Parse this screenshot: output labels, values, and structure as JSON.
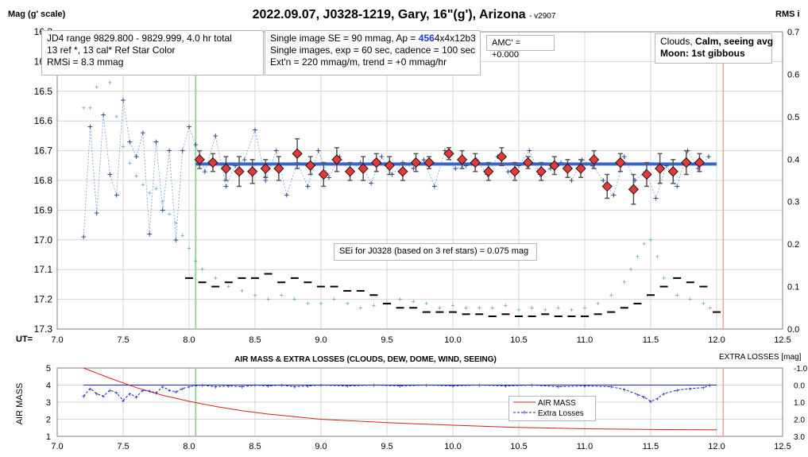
{
  "header": {
    "title": "2022.09.07, J0328-1219, Gary, 16\"(g'), Arizona",
    "version": "- v2907",
    "left_axis_title": "Mag (g' scale)",
    "right_axis_title": "RMS i",
    "ut_label": "UT="
  },
  "boxes": {
    "jd": [
      "JD4 range 9829.800 - 9829.999, 4.0 hr total",
      "13 ref *, 13 cal*  Ref Star Color",
      "RMSi = 8.3 mmag"
    ],
    "single": {
      "line1_pre": "Single image SE = 90 mmag, Ap = ",
      "line1_ap": "456",
      "line1_post": "4x4x12b3",
      "line2": "Single images, exp = 60 sec, cadence = 100 sec",
      "line3": "Ext'n = 220 mmag/m, trend = +0 mmag/hr"
    },
    "amc": "AMC' = +0.000",
    "conditions": {
      "line1_pre": "Clouds, ",
      "line1_bold": "Calm, seeing avg",
      "line2": "Moon: 1st gibbous"
    },
    "sei": "SEi for J0328 (based on 3 ref stars) = 0.075 mag"
  },
  "lower": {
    "title": "AIR MASS & EXTRA LOSSES (CLOUDS, DEW, DOME, WIND, SEEING)",
    "extra_axis_title": "EXTRA LOSSES [mag]",
    "ylabel": "AIR MASS",
    "legend": [
      "AIR MASS",
      "Extra Losses"
    ]
  },
  "colors": {
    "fit_line": "#3a64c8",
    "binned_fill": "#e03a3a",
    "single": "#1f3a78",
    "rms": "#4aa0a8",
    "airmass": "#d62020",
    "extra": "#1f2ab0",
    "green_marker": "#9ad29a",
    "red_marker": "#f0a0a0"
  },
  "chart_data": [
    {
      "type": "scatter",
      "title": "2022.09.07, J0328-1219, Gary, 16\"(g'), Arizona",
      "xlabel": "UT",
      "ylabel": "Mag (g' scale)",
      "xlim": [
        7.0,
        12.5
      ],
      "ylim": [
        17.3,
        16.3
      ],
      "x_ticks": [
        "7.0",
        "7.5",
        "8.0",
        "8.5",
        "9.0",
        "9.5",
        "10.0",
        "10.5",
        "11.0",
        "11.5",
        "12.0",
        "12.5"
      ],
      "y_ticks": [
        "16.3",
        "16.4",
        "16.5",
        "16.6",
        "16.7",
        "16.8",
        "16.9",
        "17.0",
        "17.1",
        "17.2",
        "17.3"
      ],
      "y2label": "RMS i",
      "y2lim": [
        0.0,
        0.7
      ],
      "y2_ticks": [
        "0.0",
        "0.1",
        "0.2",
        "0.3",
        "0.4",
        "0.5",
        "0.6",
        "0.7"
      ],
      "markers": [
        8.05,
        12.05
      ],
      "fit": {
        "x": [
          8.05,
          12.0
        ],
        "y": [
          16.745,
          16.745
        ]
      },
      "binned": {
        "x": [
          8.08,
          8.18,
          8.28,
          8.38,
          8.48,
          8.58,
          8.68,
          8.82,
          8.92,
          9.02,
          9.12,
          9.22,
          9.32,
          9.42,
          9.52,
          9.62,
          9.72,
          9.82,
          9.97,
          10.07,
          10.17,
          10.27,
          10.37,
          10.47,
          10.57,
          10.67,
          10.77,
          10.87,
          10.97,
          11.07,
          11.17,
          11.27,
          11.37,
          11.47,
          11.57,
          11.67,
          11.77,
          11.87
        ],
        "y": [
          16.73,
          16.74,
          16.76,
          16.77,
          16.77,
          16.76,
          16.76,
          16.71,
          16.75,
          16.78,
          16.73,
          16.77,
          16.76,
          16.74,
          16.75,
          16.77,
          16.74,
          16.74,
          16.71,
          16.73,
          16.74,
          16.77,
          16.72,
          16.77,
          16.74,
          16.77,
          16.75,
          16.76,
          16.76,
          16.73,
          16.82,
          16.74,
          16.83,
          16.78,
          16.76,
          16.77,
          16.74,
          16.74
        ],
        "err": [
          0.03,
          0.03,
          0.04,
          0.05,
          0.04,
          0.03,
          0.04,
          0.05,
          0.03,
          0.04,
          0.04,
          0.03,
          0.04,
          0.03,
          0.03,
          0.03,
          0.03,
          0.02,
          0.02,
          0.03,
          0.03,
          0.03,
          0.03,
          0.03,
          0.02,
          0.03,
          0.03,
          0.03,
          0.03,
          0.03,
          0.04,
          0.03,
          0.05,
          0.04,
          0.05,
          0.04,
          0.04,
          0.03
        ]
      },
      "series": [
        {
          "name": "Single images",
          "x": [
            7.2,
            7.25,
            7.3,
            7.35,
            7.4,
            7.45,
            7.5,
            7.55,
            7.6,
            7.65,
            7.7,
            7.75,
            7.8,
            7.85,
            7.9,
            7.95,
            8.0,
            8.05,
            8.12,
            8.2,
            8.28,
            8.35,
            8.42,
            8.5,
            8.58,
            8.66,
            8.74,
            8.82,
            8.9,
            8.98,
            9.06,
            9.14,
            9.22,
            9.3,
            9.38,
            9.46,
            9.54,
            9.62,
            9.7,
            9.78,
            9.86,
            9.94,
            10.02,
            10.1,
            10.18,
            10.26,
            10.34,
            10.42,
            10.5,
            10.58,
            10.66,
            10.74,
            10.82,
            10.9,
            10.98,
            11.06,
            11.14,
            11.22,
            11.3,
            11.38,
            11.46,
            11.54,
            11.62,
            11.7,
            11.78,
            11.86,
            11.94
          ],
          "y": [
            16.99,
            16.62,
            16.91,
            16.58,
            16.78,
            16.85,
            16.53,
            16.67,
            16.72,
            16.64,
            16.98,
            16.67,
            16.9,
            16.7,
            17.0,
            16.7,
            16.62,
            16.68,
            16.77,
            16.65,
            16.82,
            16.75,
            16.73,
            16.63,
            16.8,
            16.7,
            16.85,
            16.74,
            16.82,
            16.7,
            16.79,
            16.72,
            16.77,
            16.74,
            16.81,
            16.72,
            16.78,
            16.74,
            16.76,
            16.73,
            16.82,
            16.7,
            16.76,
            16.75,
            16.73,
            16.78,
            16.72,
            16.77,
            16.75,
            16.7,
            16.78,
            16.76,
            16.74,
            16.8,
            16.73,
            16.75,
            16.8,
            16.85,
            16.72,
            16.8,
            16.77,
            16.86,
            16.75,
            16.82,
            16.7,
            16.76,
            16.72
          ]
        },
        {
          "name": "RMS",
          "x": [
            7.2,
            7.25,
            7.3,
            7.35,
            7.4,
            7.45,
            7.5,
            7.55,
            7.6,
            7.65,
            7.7,
            7.75,
            7.8,
            7.85,
            7.9,
            7.95,
            8.0,
            8.05,
            8.1,
            8.2,
            8.3,
            8.4,
            8.5,
            8.6,
            8.7,
            8.8,
            8.9,
            9.0,
            9.1,
            9.2,
            9.3,
            9.4,
            9.5,
            9.6,
            9.7,
            9.8,
            9.9,
            10.0,
            10.1,
            10.2,
            10.3,
            10.4,
            10.5,
            10.6,
            10.7,
            10.8,
            10.9,
            11.0,
            11.1,
            11.2,
            11.3,
            11.35,
            11.4,
            11.45,
            11.5,
            11.55,
            11.6,
            11.7,
            11.8,
            11.9,
            11.95
          ],
          "y": [
            0.52,
            0.52,
            0.57,
            0.6,
            0.58,
            0.5,
            0.43,
            0.39,
            0.36,
            0.34,
            0.32,
            0.33,
            0.3,
            0.27,
            0.25,
            0.22,
            0.19,
            0.16,
            0.14,
            0.12,
            0.1,
            0.09,
            0.08,
            0.07,
            0.08,
            0.07,
            0.06,
            0.06,
            0.07,
            0.06,
            0.05,
            0.055,
            0.06,
            0.07,
            0.065,
            0.06,
            0.05,
            0.055,
            0.05,
            0.05,
            0.05,
            0.055,
            0.045,
            0.05,
            0.045,
            0.05,
            0.045,
            0.05,
            0.06,
            0.08,
            0.11,
            0.14,
            0.17,
            0.2,
            0.21,
            0.17,
            0.12,
            0.08,
            0.07,
            0.06,
            0.05
          ]
        },
        {
          "name": "Ref star RMS",
          "x": [
            8.0,
            8.1,
            8.2,
            8.3,
            8.4,
            8.5,
            8.6,
            8.7,
            8.8,
            8.9,
            9.0,
            9.1,
            9.2,
            9.3,
            9.4,
            9.5,
            9.6,
            9.7,
            9.8,
            9.9,
            10.0,
            10.1,
            10.2,
            10.3,
            10.4,
            10.5,
            10.6,
            10.7,
            10.8,
            10.9,
            11.0,
            11.1,
            11.2,
            11.3,
            11.4,
            11.5,
            11.6,
            11.7,
            11.8,
            11.9,
            12.0
          ],
          "y": [
            0.12,
            0.11,
            0.1,
            0.11,
            0.12,
            0.12,
            0.13,
            0.11,
            0.12,
            0.11,
            0.1,
            0.1,
            0.09,
            0.09,
            0.08,
            0.06,
            0.05,
            0.05,
            0.04,
            0.04,
            0.04,
            0.035,
            0.035,
            0.03,
            0.035,
            0.03,
            0.03,
            0.035,
            0.03,
            0.03,
            0.03,
            0.035,
            0.04,
            0.05,
            0.06,
            0.08,
            0.1,
            0.12,
            0.11,
            0.1,
            0.04
          ]
        }
      ]
    },
    {
      "type": "line",
      "title": "AIR MASS & EXTRA LOSSES (CLOUDS, DEW, DOME, WIND, SEEING)",
      "xlabel": "",
      "ylabel": "AIR MASS",
      "xlim": [
        7.0,
        12.5
      ],
      "ylim": [
        1,
        5
      ],
      "x_ticks": [
        "7.0",
        "7.5",
        "8.0",
        "8.5",
        "9.0",
        "9.5",
        "10.0",
        "10.5",
        "11.0",
        "11.5",
        "12.0",
        "12.5"
      ],
      "y_ticks": [
        "1",
        "2",
        "3",
        "4",
        "5"
      ],
      "y2label": "EXTRA LOSSES [mag]",
      "y2lim": [
        3.0,
        -1.0
      ],
      "y2_ticks": [
        "-1.0",
        "0.0",
        "1.0",
        "2.0",
        "3.0"
      ],
      "markers": [
        8.05,
        12.05
      ],
      "legend": "center-right",
      "series": [
        {
          "name": "AIR MASS",
          "x": [
            7.2,
            7.4,
            7.6,
            7.8,
            8.0,
            8.2,
            8.4,
            8.6,
            8.8,
            9.0,
            9.5,
            10.0,
            10.5,
            11.0,
            11.5,
            12.0
          ],
          "y": [
            5.0,
            4.4,
            3.85,
            3.4,
            3.05,
            2.75,
            2.5,
            2.3,
            2.15,
            2.0,
            1.8,
            1.65,
            1.52,
            1.44,
            1.4,
            1.38
          ]
        },
        {
          "name": "Extra Losses",
          "x": [
            7.2,
            7.25,
            7.3,
            7.35,
            7.4,
            7.45,
            7.5,
            7.55,
            7.6,
            7.65,
            7.7,
            7.75,
            7.8,
            7.85,
            7.9,
            7.95,
            8.0,
            8.1,
            8.2,
            8.3,
            8.4,
            8.5,
            8.6,
            8.7,
            8.8,
            8.9,
            9.0,
            9.2,
            9.4,
            9.6,
            9.8,
            10.0,
            10.2,
            10.4,
            10.6,
            10.8,
            11.0,
            11.2,
            11.3,
            11.4,
            11.45,
            11.5,
            11.55,
            11.6,
            11.7,
            11.8,
            11.9,
            11.95
          ],
          "y": [
            0.65,
            0.2,
            0.5,
            0.65,
            0.3,
            0.45,
            0.9,
            0.5,
            0.7,
            0.3,
            0.35,
            0.45,
            0.1,
            0.3,
            0.4,
            0.2,
            0.1,
            0.0,
            0.1,
            0.05,
            0.1,
            0.0,
            0.05,
            0.0,
            0.1,
            0.05,
            0.0,
            0.05,
            0.0,
            0.05,
            0.0,
            0.05,
            0.0,
            0.05,
            0.0,
            0.1,
            0.05,
            0.1,
            0.25,
            0.55,
            0.7,
            0.95,
            0.8,
            0.5,
            0.3,
            0.2,
            0.15,
            0.0
          ]
        }
      ]
    }
  ]
}
